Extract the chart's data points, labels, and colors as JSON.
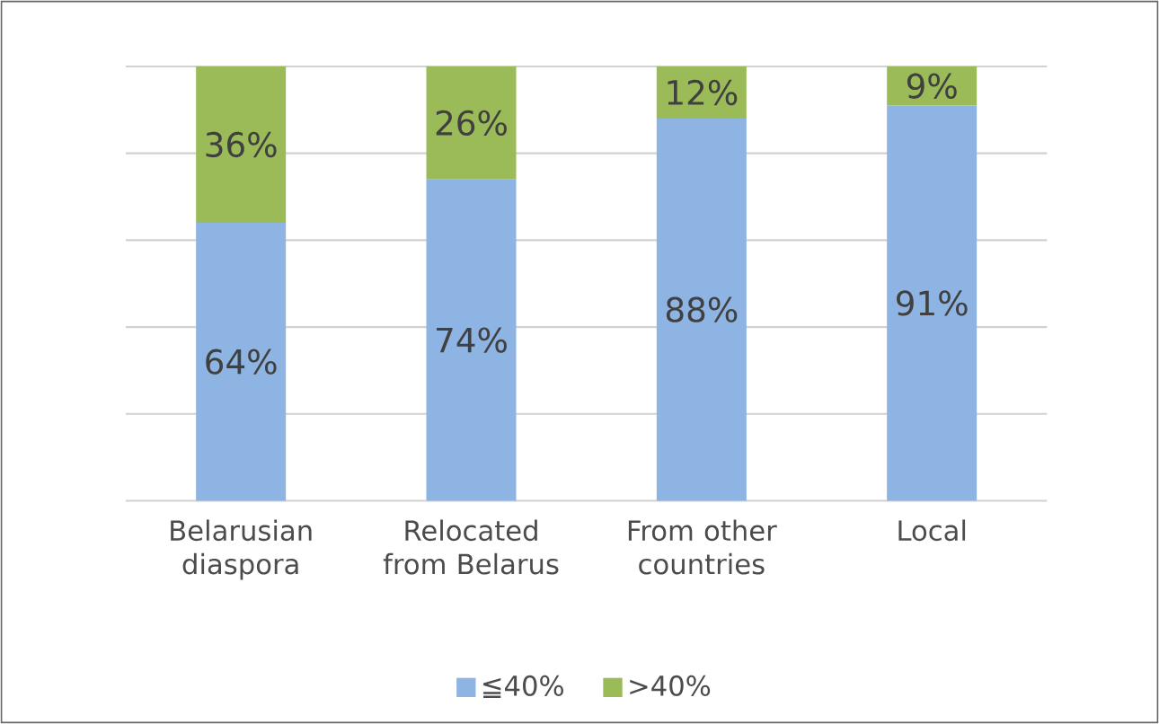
{
  "chart_data": {
    "type": "bar",
    "stacked": true,
    "categories": [
      "Belarusian diaspora",
      "Relocated from Belarus",
      "From other countries",
      "Local"
    ],
    "series": [
      {
        "name": "≦40%",
        "color": "#8eb4e3",
        "values": [
          64,
          74,
          88,
          91
        ],
        "value_labels": [
          "64%",
          "74%",
          "88%",
          "91%"
        ]
      },
      {
        "name": ">40%",
        "color": "#9bbb59",
        "values": [
          36,
          26,
          12,
          9
        ],
        "value_labels": [
          "36%",
          "26%",
          "12%",
          "9%"
        ]
      }
    ],
    "ylim": [
      0,
      100
    ],
    "tick_labels": "x",
    "grid": "y",
    "legend": "bottom"
  }
}
